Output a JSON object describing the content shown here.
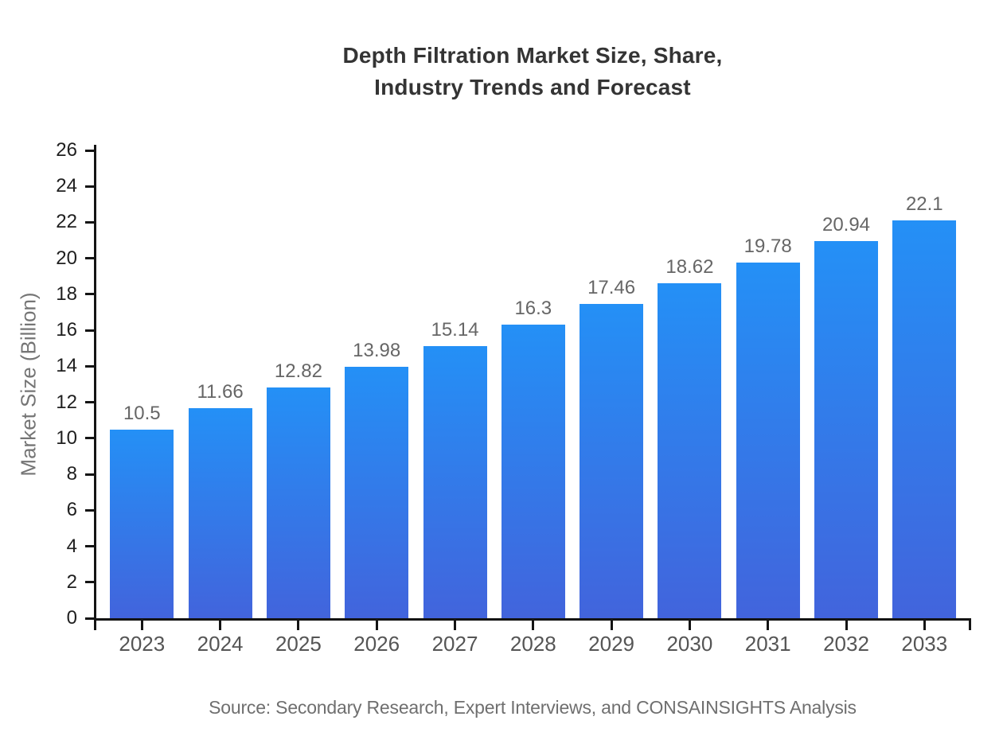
{
  "page": {
    "background": "#ffffff"
  },
  "chart_data": {
    "type": "bar",
    "title_line1": "Depth Filtration Market Size, Share,",
    "title_line2": "Industry Trends and Forecast",
    "ylabel": "Market Size (Billion)",
    "xlabel": "",
    "source": "Source: Secondary Research, Expert Interviews, and CONSAINSIGHTS Analysis",
    "categories": [
      "2023",
      "2024",
      "2025",
      "2026",
      "2027",
      "2028",
      "2029",
      "2030",
      "2031",
      "2032",
      "2033"
    ],
    "values": [
      10.5,
      11.66,
      12.82,
      13.98,
      15.14,
      16.3,
      17.46,
      18.62,
      19.78,
      20.94,
      22.1
    ],
    "ylim": [
      0,
      26
    ],
    "yticks": [
      0,
      2,
      4,
      6,
      8,
      10,
      12,
      14,
      16,
      18,
      20,
      22,
      24,
      26
    ],
    "grid": false,
    "legend": "none",
    "colors": {
      "bar_gradient_top": "#2490f6",
      "bar_gradient_bottom": "#4264dc",
      "axis": "#141414",
      "title": "#343434",
      "y_tick_label": "#1f1f1f",
      "x_tick_label": "#555555",
      "value_label": "#666666",
      "muted_text": "#6f6f6f"
    }
  }
}
